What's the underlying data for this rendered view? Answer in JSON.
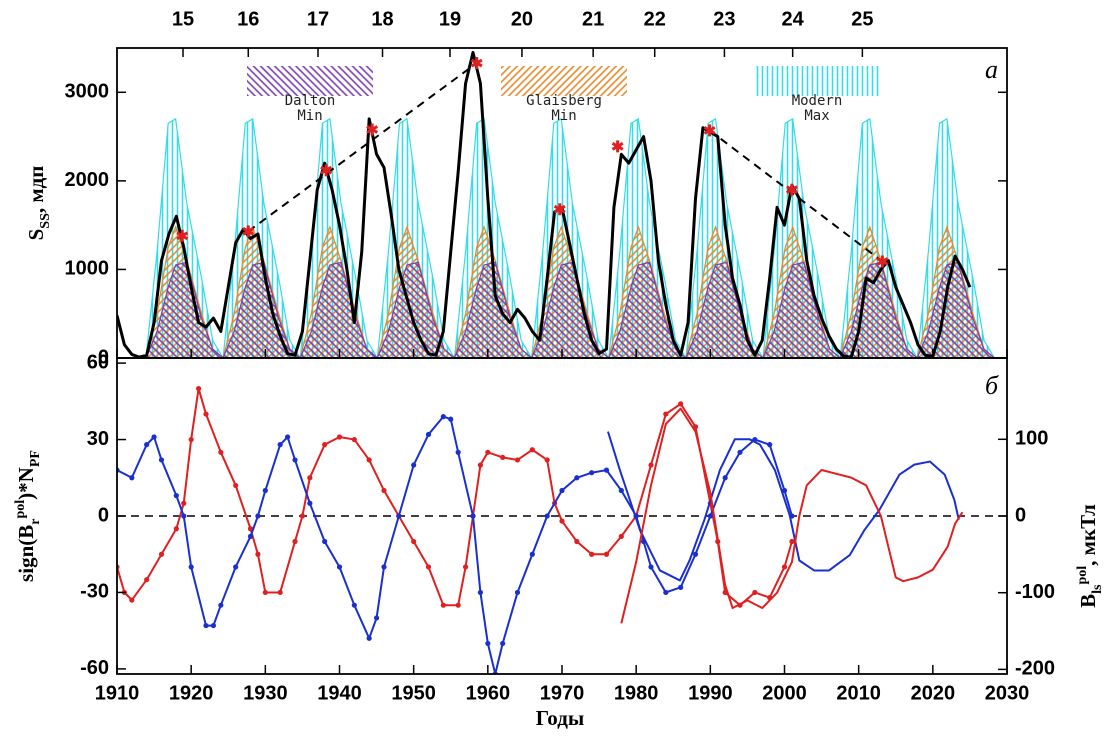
{
  "chart_data": [
    {
      "type": "line",
      "panel_label": "а",
      "ylabel": [
        {
          "text": "S"
        },
        {
          "text": "SS",
          "script": "sub"
        },
        {
          "text": ", мдп"
        }
      ],
      "xlim": [
        1910,
        2030
      ],
      "ylim": [
        0,
        3500
      ],
      "yticks": [
        0,
        1000,
        2000,
        3000
      ],
      "x2ticks": [
        {
          "value": 1918.9,
          "label": "15"
        },
        {
          "value": 1927.7,
          "label": "16"
        },
        {
          "value": 1937.1,
          "label": "17"
        },
        {
          "value": 1945.8,
          "label": "18"
        },
        {
          "value": 1954.9,
          "label": "19"
        },
        {
          "value": 1964.6,
          "label": "20"
        },
        {
          "value": 1974.2,
          "label": "21"
        },
        {
          "value": 1982.5,
          "label": "22"
        },
        {
          "value": 1991.9,
          "label": "23"
        },
        {
          "value": 2001.1,
          "label": "24"
        },
        {
          "value": 2010.5,
          "label": "25"
        }
      ],
      "x": [
        1913.9,
        1915.4,
        1916.9,
        1917.9,
        1919.4,
        1921.4,
        1922.9,
        1924.3,
        1925.8,
        1927.3,
        1928.3,
        1929.8,
        1931.8,
        1933.3,
        1934.7,
        1936.2,
        1937.7,
        1938.7,
        1940.2,
        1942.2,
        1943.7,
        1945.1,
        1946.6,
        1948.1,
        1949.1,
        1950.6,
        1952.6,
        1954.1,
        1955.5,
        1957,
        1958.5,
        1959.5,
        1961,
        1963,
        1964.5,
        1965.9,
        1967.4,
        1968.9,
        1969.9,
        1971.4,
        1973.4,
        1974.9,
        1976.3,
        1977.8,
        1979.3,
        1980.3,
        1981.8,
        1983.8,
        1985.3,
        1986.7,
        1988.2,
        1989.7,
        1990.7,
        1992.2,
        1994.2,
        1995.7,
        1997.1,
        1998.6,
        2000.1,
        2001.1,
        2002.6,
        2004.6,
        2006.1,
        2007.5,
        2009,
        2010.5,
        2011.5,
        2013,
        2015,
        2016.5,
        2017.9,
        2019.4,
        2020.9,
        2021.9,
        2023.4,
        2025.4,
        2026.9,
        2028.3
      ],
      "series": [
        {
          "name": "Modern Max",
          "color": "#33dce6",
          "hatch": "vertical",
          "values": [
            0,
            1200,
            2650,
            2700,
            1750,
            900,
            200,
            0,
            1200,
            2650,
            2700,
            1750,
            900,
            200,
            0,
            1200,
            2650,
            2700,
            1750,
            900,
            200,
            0,
            1200,
            2650,
            2700,
            1750,
            900,
            200,
            0,
            1200,
            2650,
            2700,
            1750,
            900,
            200,
            0,
            1200,
            2650,
            2700,
            1750,
            900,
            200,
            0,
            1200,
            2650,
            2700,
            1750,
            900,
            200,
            0,
            1200,
            2650,
            2700,
            1750,
            900,
            200,
            0,
            1200,
            2650,
            2700,
            1750,
            900,
            200,
            0,
            1200,
            2650,
            2700,
            1750,
            900,
            200,
            0,
            1200,
            2650,
            2700,
            1750,
            900,
            200,
            0
          ]
        },
        {
          "name": "Glaisberg Min",
          "color": "#e5892c",
          "hatch": "diagonal-down",
          "values": [
            0,
            500,
            1250,
            1480,
            1100,
            500,
            100,
            0,
            500,
            1250,
            1480,
            1100,
            500,
            100,
            0,
            500,
            1250,
            1480,
            1100,
            500,
            100,
            0,
            500,
            1250,
            1480,
            1100,
            500,
            100,
            0,
            500,
            1250,
            1480,
            1100,
            500,
            100,
            0,
            500,
            1250,
            1480,
            1100,
            500,
            100,
            0,
            500,
            1250,
            1480,
            1100,
            500,
            100,
            0,
            500,
            1250,
            1480,
            1100,
            500,
            100,
            0,
            500,
            1250,
            1480,
            1100,
            500,
            100,
            0,
            500,
            1250,
            1480,
            1100,
            500,
            100,
            0,
            500,
            1250,
            1480,
            1100,
            500,
            100,
            0
          ]
        },
        {
          "name": "Dalton Min",
          "color": "#7a3fb2",
          "hatch": "diagonal-up",
          "values": [
            0,
            300,
            800,
            1050,
            1080,
            450,
            100,
            0,
            300,
            800,
            1050,
            1080,
            450,
            100,
            0,
            300,
            800,
            1050,
            1080,
            450,
            100,
            0,
            300,
            800,
            1050,
            1080,
            450,
            100,
            0,
            300,
            800,
            1050,
            1080,
            450,
            100,
            0,
            300,
            800,
            1050,
            1080,
            450,
            100,
            0,
            300,
            800,
            1050,
            1080,
            450,
            100,
            0,
            300,
            800,
            1050,
            1080,
            450,
            100,
            0,
            300,
            800,
            1050,
            1080,
            450,
            100,
            0,
            300,
            800,
            1050,
            1080,
            450,
            100,
            0,
            300,
            800,
            1050,
            1080,
            450,
            100,
            0
          ]
        },
        {
          "color": "#000000",
          "width": 3,
          "x": [
            1910,
            1911,
            1912,
            1913,
            1914,
            1915,
            1916,
            1917,
            1918,
            1919,
            1920,
            1921,
            1922,
            1923,
            1924,
            1925,
            1926,
            1927,
            1928,
            1929,
            1930,
            1931,
            1932,
            1933,
            1934,
            1935,
            1936,
            1937,
            1938,
            1939,
            1940,
            1941,
            1942,
            1943,
            1944,
            1945,
            1946,
            1947,
            1948,
            1949,
            1950,
            1951,
            1952,
            1953,
            1954,
            1955,
            1956,
            1957,
            1958,
            1959,
            1960,
            1961,
            1962,
            1963,
            1964,
            1965,
            1966,
            1967,
            1968,
            1969,
            1970,
            1971,
            1972,
            1973,
            1974,
            1975,
            1976,
            1977,
            1978,
            1979,
            1980,
            1981,
            1982,
            1983,
            1984,
            1985,
            1986,
            1987,
            1988,
            1989,
            1990,
            1991,
            1992,
            1993,
            1994,
            1995,
            1996,
            1997,
            1998,
            1999,
            2000,
            2001,
            2002,
            2003,
            2004,
            2005,
            2006,
            2007,
            2008,
            2009,
            2010,
            2011,
            2012,
            2013,
            2014,
            2015,
            2016,
            2017,
            2018,
            2019,
            2020,
            2021,
            2022,
            2023,
            2024,
            2025
          ],
          "values": [
            480,
            150,
            40,
            10,
            30,
            400,
            1100,
            1400,
            1600,
            1250,
            800,
            400,
            350,
            450,
            300,
            800,
            1300,
            1450,
            1350,
            1400,
            900,
            500,
            250,
            50,
            30,
            300,
            1100,
            1900,
            2200,
            1900,
            1500,
            1000,
            400,
            1200,
            2700,
            2300,
            2150,
            1600,
            1000,
            700,
            400,
            200,
            50,
            30,
            300,
            1200,
            2100,
            3100,
            3450,
            3100,
            1800,
            700,
            500,
            400,
            550,
            450,
            300,
            200,
            900,
            1650,
            1700,
            1300,
            900,
            500,
            200,
            50,
            100,
            1700,
            2300,
            2200,
            2350,
            2500,
            2000,
            1100,
            600,
            200,
            30,
            400,
            1800,
            2600,
            2550,
            2500,
            1500,
            900,
            600,
            200,
            30,
            200,
            900,
            1700,
            1500,
            1950,
            1800,
            1100,
            700,
            450,
            250,
            100,
            20,
            10,
            300,
            900,
            850,
            1000,
            1100,
            800,
            600,
            400,
            150,
            30,
            20,
            300,
            800,
            1150,
            1000,
            800
          ]
        },
        {
          "color": "#000000",
          "dash": true,
          "x": [
            1927.7,
            1958.5
          ],
          "values": [
            1430,
            3330
          ]
        },
        {
          "color": "#000000",
          "dash": true,
          "x": [
            1989.9,
            2013.2
          ],
          "values": [
            2570,
            1090
          ]
        },
        {
          "color": "#e02020",
          "marker": "star",
          "x": [
            1918.8,
            1927.7,
            1938.2,
            1944.4,
            1958.5,
            1969.7,
            1977.5,
            1989.9,
            2001,
            2013.2
          ],
          "values": [
            1380,
            1430,
            2120,
            2580,
            3330,
            1680,
            2390,
            2570,
            1900,
            1090
          ]
        }
      ]
    },
    {
      "type": "line",
      "panel_label": "б",
      "xlabel": "Годы",
      "ylabel": [
        {
          "text": "sign(B"
        },
        {
          "text": "r",
          "script": "sub"
        },
        {
          "text": "pol",
          "script": "super"
        },
        {
          "text": ")*N"
        },
        {
          "text": "PF",
          "script": "sub"
        }
      ],
      "y2label": [
        {
          "text": "B"
        },
        {
          "text": "ls",
          "script": "sub"
        },
        {
          "text": "pol",
          "script": "super"
        },
        {
          "text": ", мкТл"
        }
      ],
      "xlim": [
        1910,
        2030
      ],
      "xticks": [
        1910,
        1920,
        1930,
        1940,
        1950,
        1960,
        1970,
        1980,
        1990,
        2000,
        2010,
        2020,
        2030
      ],
      "ylim": [
        -62,
        62
      ],
      "yticks": [
        -60,
        -30,
        0,
        30,
        60
      ],
      "y2lim": [
        -206,
        206
      ],
      "y2ticks": [
        -200,
        -100,
        0,
        100
      ],
      "hline": 0,
      "series": [
        {
          "color": "#e02020",
          "marker": "dot",
          "x": [
            1910,
            1911,
            1912,
            1914,
            1916,
            1918,
            1919,
            1920,
            1921,
            1922,
            1924,
            1926,
            1928,
            1929,
            1930,
            1932,
            1934,
            1935,
            1936,
            1938,
            1940,
            1942,
            1944,
            1946,
            1948,
            1950,
            1952,
            1954,
            1956,
            1957,
            1958,
            1959,
            1960,
            1962,
            1964,
            1966,
            1968,
            1969,
            1970,
            1972,
            1974,
            1976,
            1978,
            1980,
            1982,
            1984,
            1986,
            1988,
            1990,
            1991,
            1992,
            1994,
            1996,
            1998,
            2000,
            2001
          ],
          "values": [
            -20,
            -30,
            -33,
            -25,
            -15,
            -5,
            5,
            30,
            50,
            40,
            25,
            12,
            -5,
            -15,
            -30,
            -30,
            -10,
            0,
            15,
            28,
            31,
            30,
            22,
            10,
            0,
            -10,
            -20,
            -35,
            -35,
            -20,
            0,
            20,
            25,
            23,
            22,
            26,
            22,
            5,
            -2,
            -10,
            -15,
            -15,
            -8,
            0,
            20,
            40,
            44,
            35,
            5,
            -10,
            -30,
            -35,
            -30,
            -32,
            -20,
            -10
          ]
        },
        {
          "color": "#1a2fd0",
          "marker": "dot",
          "x": [
            1910,
            1912,
            1914,
            1915,
            1916,
            1918,
            1919,
            1920,
            1922,
            1923,
            1924,
            1926,
            1928,
            1929,
            1930,
            1932,
            1933,
            1934,
            1936,
            1938,
            1940,
            1942,
            1944,
            1945,
            1946,
            1948,
            1950,
            1952,
            1954,
            1955,
            1956,
            1958,
            1959,
            1960,
            1961,
            1962,
            1964,
            1966,
            1968,
            1970,
            1972,
            1974,
            1976,
            1978,
            1980,
            1981,
            1982,
            1984,
            1986,
            1988,
            1990,
            1992,
            1994,
            1996,
            1998,
            2000,
            2001
          ],
          "values": [
            18,
            15,
            28,
            31,
            22,
            8,
            0,
            -20,
            -43,
            -43,
            -35,
            -20,
            -8,
            0,
            10,
            28,
            31,
            22,
            5,
            -10,
            -20,
            -35,
            -48,
            -40,
            -20,
            0,
            20,
            32,
            39,
            38,
            25,
            0,
            -30,
            -50,
            -62,
            -50,
            -30,
            -15,
            0,
            10,
            15,
            17,
            18,
            10,
            0,
            -10,
            -20,
            -30,
            -28,
            -15,
            0,
            15,
            25,
            30,
            28,
            10,
            0
          ]
        },
        {
          "color": "#1a2fd0",
          "axis": "y2",
          "x": [
            1976.2,
            1977.8,
            1980.5,
            1983.2,
            1985.9,
            1987.2,
            1989.2,
            1991.3,
            1993.3,
            1995.3,
            1996.7,
            1998.7,
            2000.7,
            2002,
            2004,
            2006,
            2008.8,
            2010.8,
            2012.8,
            2015.5,
            2017.5,
            2019.6,
            2021.6,
            2022.9,
            2023.5
          ],
          "values": [
            110,
            60,
            -18,
            -71,
            -84,
            -58,
            -5,
            60,
            100,
            100,
            93,
            60,
            1,
            -58,
            -71,
            -71,
            -51,
            -18,
            8,
            54,
            67,
            71,
            54,
            21,
            -5
          ]
        },
        {
          "color": "#e02020",
          "axis": "y2",
          "x": [
            1978,
            1980,
            1982,
            1984,
            1986,
            1988,
            1990,
            1991,
            1992,
            1993,
            1995,
            1997,
            1999,
            2001,
            2002,
            2003,
            2005,
            2007,
            2009,
            2011,
            2013,
            2014,
            2015,
            2016,
            2018,
            2020,
            2022,
            2023,
            2024
          ],
          "values": [
            -140,
            -60,
            40,
            120,
            140,
            110,
            30,
            -30,
            -90,
            -120,
            -110,
            -120,
            -100,
            -60,
            0,
            40,
            60,
            55,
            50,
            40,
            0,
            -40,
            -80,
            -85,
            -80,
            -70,
            -40,
            -10,
            5
          ]
        }
      ]
    }
  ]
}
